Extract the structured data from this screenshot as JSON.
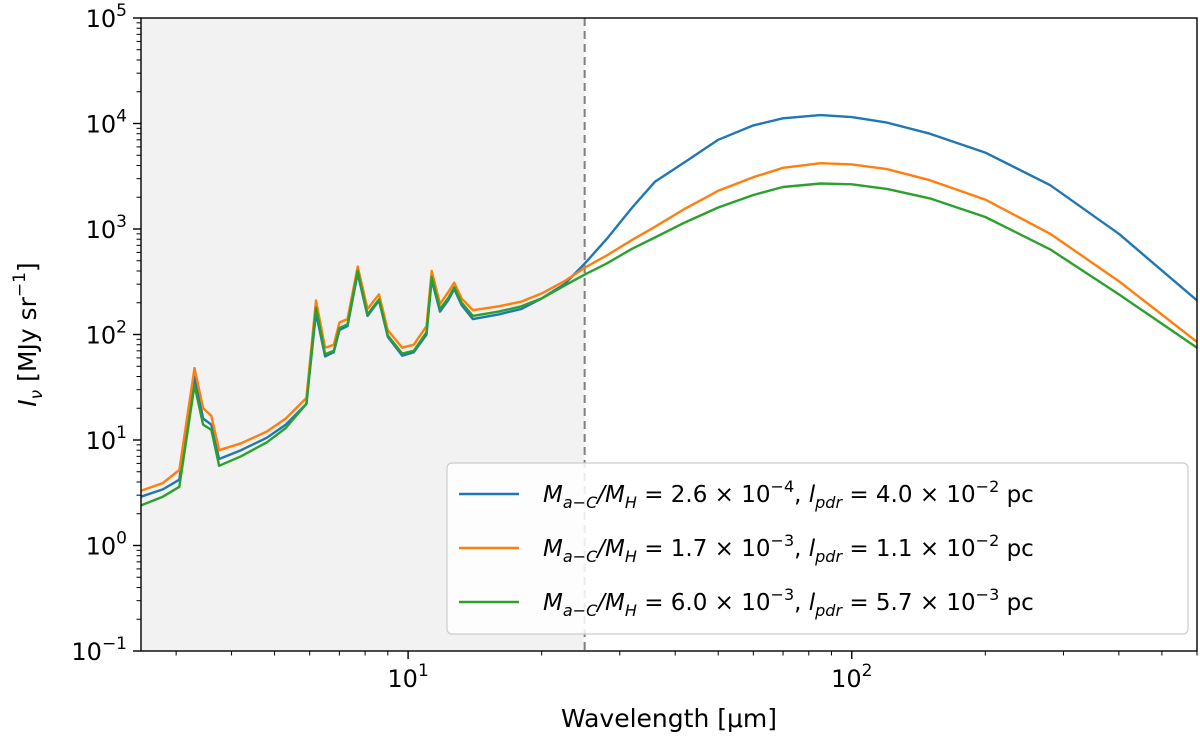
{
  "chart_data": {
    "type": "line",
    "xscale": "log",
    "yscale": "log",
    "xlim": [
      2.5,
      600
    ],
    "ylim": [
      0.1,
      100000
    ],
    "xlabel": "Wavelength [μm]",
    "ylabel_parts": {
      "main": "I",
      "sub": "ν",
      "unit_open": " [MJy sr",
      "unit_exp": "−1",
      "unit_close": "]"
    },
    "x_ticks": [
      {
        "value": 10,
        "base": "10",
        "exp": "1"
      },
      {
        "value": 100,
        "base": "10",
        "exp": "2"
      }
    ],
    "y_ticks": [
      {
        "value": 0.1,
        "base": "10",
        "exp": "−1"
      },
      {
        "value": 1,
        "base": "10",
        "exp": "0"
      },
      {
        "value": 10,
        "base": "10",
        "exp": "1"
      },
      {
        "value": 100,
        "base": "10",
        "exp": "2"
      },
      {
        "value": 1000,
        "base": "10",
        "exp": "3"
      },
      {
        "value": 10000,
        "base": "10",
        "exp": "4"
      },
      {
        "value": 100000,
        "base": "10",
        "exp": "5"
      }
    ],
    "shaded_region": {
      "x_start": 2.5,
      "x_end": 25,
      "color": "#f2f2f2"
    },
    "vline": {
      "x": 25,
      "color": "#808080",
      "style": "dashed"
    },
    "legend_position": "lower-right",
    "series": [
      {
        "name": "M_{a-C}/M_H = 2.6 × 10^{-4}, l_{pdr} = 4.0 × 10^{-2} pc",
        "label_parts": {
          "mass_ratio": "2.6",
          "mass_exp": "−4",
          "lpdr": "4.0",
          "lpdr_exp": "−2"
        },
        "color": "#1f77b4",
        "points": [
          [
            2.5,
            2.9
          ],
          [
            2.8,
            3.4
          ],
          [
            3.05,
            4.2
          ],
          [
            3.3,
            40
          ],
          [
            3.45,
            16
          ],
          [
            3.6,
            14
          ],
          [
            3.75,
            6.6
          ],
          [
            4.2,
            8
          ],
          [
            4.8,
            10.5
          ],
          [
            5.3,
            14
          ],
          [
            5.9,
            22
          ],
          [
            6.2,
            160
          ],
          [
            6.5,
            62
          ],
          [
            6.8,
            68
          ],
          [
            7.0,
            110
          ],
          [
            7.3,
            120
          ],
          [
            7.7,
            380
          ],
          [
            8.1,
            150
          ],
          [
            8.6,
            210
          ],
          [
            9.0,
            95
          ],
          [
            9.7,
            63
          ],
          [
            10.3,
            68
          ],
          [
            11.0,
            100
          ],
          [
            11.3,
            330
          ],
          [
            11.8,
            165
          ],
          [
            12.3,
            210
          ],
          [
            12.7,
            270
          ],
          [
            13.2,
            190
          ],
          [
            14.0,
            140
          ],
          [
            16.0,
            155
          ],
          [
            18.0,
            175
          ],
          [
            20.0,
            220
          ],
          [
            22.5,
            300
          ],
          [
            25,
            470
          ],
          [
            28,
            800
          ],
          [
            32,
            1600
          ],
          [
            36,
            2800
          ],
          [
            42,
            4300
          ],
          [
            50,
            7000
          ],
          [
            60,
            9600
          ],
          [
            70,
            11200
          ],
          [
            85,
            12000
          ],
          [
            100,
            11500
          ],
          [
            120,
            10200
          ],
          [
            150,
            8000
          ],
          [
            200,
            5300
          ],
          [
            280,
            2600
          ],
          [
            400,
            900
          ],
          [
            600,
            210
          ]
        ]
      },
      {
        "name": "M_{a-C}/M_H = 1.7 × 10^{-3}, l_{pdr} = 1.1 × 10^{-2} pc",
        "label_parts": {
          "mass_ratio": "1.7",
          "mass_exp": "−3",
          "lpdr": "1.1",
          "lpdr_exp": "−2"
        },
        "color": "#ff7f0e",
        "points": [
          [
            2.5,
            3.3
          ],
          [
            2.8,
            3.9
          ],
          [
            3.05,
            5.2
          ],
          [
            3.3,
            48
          ],
          [
            3.45,
            20
          ],
          [
            3.6,
            17
          ],
          [
            3.75,
            8
          ],
          [
            4.2,
            9.3
          ],
          [
            4.8,
            12
          ],
          [
            5.3,
            16
          ],
          [
            5.9,
            25
          ],
          [
            6.2,
            210
          ],
          [
            6.5,
            75
          ],
          [
            6.8,
            80
          ],
          [
            7.0,
            130
          ],
          [
            7.3,
            140
          ],
          [
            7.7,
            440
          ],
          [
            8.1,
            175
          ],
          [
            8.6,
            240
          ],
          [
            9.0,
            110
          ],
          [
            9.7,
            75
          ],
          [
            10.3,
            80
          ],
          [
            11.0,
            120
          ],
          [
            11.3,
            400
          ],
          [
            11.8,
            195
          ],
          [
            12.3,
            250
          ],
          [
            12.7,
            310
          ],
          [
            13.2,
            220
          ],
          [
            14.0,
            170
          ],
          [
            16.0,
            185
          ],
          [
            18.0,
            205
          ],
          [
            20.0,
            245
          ],
          [
            22.5,
            320
          ],
          [
            25,
            430
          ],
          [
            28,
            560
          ],
          [
            32,
            790
          ],
          [
            36,
            1050
          ],
          [
            42,
            1550
          ],
          [
            50,
            2300
          ],
          [
            60,
            3100
          ],
          [
            70,
            3800
          ],
          [
            85,
            4200
          ],
          [
            100,
            4100
          ],
          [
            120,
            3700
          ],
          [
            150,
            2900
          ],
          [
            200,
            1900
          ],
          [
            280,
            900
          ],
          [
            400,
            320
          ],
          [
            600,
            85
          ]
        ]
      },
      {
        "name": "M_{a-C}/M_H = 6.0 × 10^{-3}, l_{pdr} = 5.7 × 10^{-3} pc",
        "label_parts": {
          "mass_ratio": "6.0",
          "mass_exp": "−3",
          "lpdr": "5.7",
          "lpdr_exp": "−3"
        },
        "color": "#2ca02c",
        "points": [
          [
            2.5,
            2.4
          ],
          [
            2.8,
            2.9
          ],
          [
            3.05,
            3.6
          ],
          [
            3.3,
            33
          ],
          [
            3.45,
            14
          ],
          [
            3.6,
            12.5
          ],
          [
            3.75,
            5.7
          ],
          [
            4.2,
            7
          ],
          [
            4.8,
            9.5
          ],
          [
            5.3,
            13
          ],
          [
            5.9,
            22
          ],
          [
            6.2,
            180
          ],
          [
            6.5,
            65
          ],
          [
            6.8,
            70
          ],
          [
            7.0,
            115
          ],
          [
            7.3,
            125
          ],
          [
            7.7,
            400
          ],
          [
            8.1,
            155
          ],
          [
            8.6,
            215
          ],
          [
            9.0,
            98
          ],
          [
            9.7,
            66
          ],
          [
            10.3,
            70
          ],
          [
            11.0,
            105
          ],
          [
            11.3,
            350
          ],
          [
            11.8,
            175
          ],
          [
            12.3,
            220
          ],
          [
            12.7,
            280
          ],
          [
            13.2,
            200
          ],
          [
            14.0,
            150
          ],
          [
            16.0,
            165
          ],
          [
            18.0,
            185
          ],
          [
            20.0,
            220
          ],
          [
            22.5,
            290
          ],
          [
            25,
            370
          ],
          [
            28,
            470
          ],
          [
            32,
            650
          ],
          [
            36,
            830
          ],
          [
            42,
            1150
          ],
          [
            50,
            1600
          ],
          [
            60,
            2100
          ],
          [
            70,
            2500
          ],
          [
            85,
            2700
          ],
          [
            100,
            2650
          ],
          [
            120,
            2400
          ],
          [
            150,
            1950
          ],
          [
            200,
            1300
          ],
          [
            280,
            640
          ],
          [
            400,
            240
          ],
          [
            600,
            75
          ]
        ]
      }
    ],
    "legend_common": {
      "M": "M",
      "sub_aC": "a−C",
      "sub_H": "H",
      "eq": " = ",
      "times": " × 10",
      "lpdr_l": "l",
      "lpdr_sub": "pdr",
      "unit": " pc",
      "sep": ", "
    }
  }
}
